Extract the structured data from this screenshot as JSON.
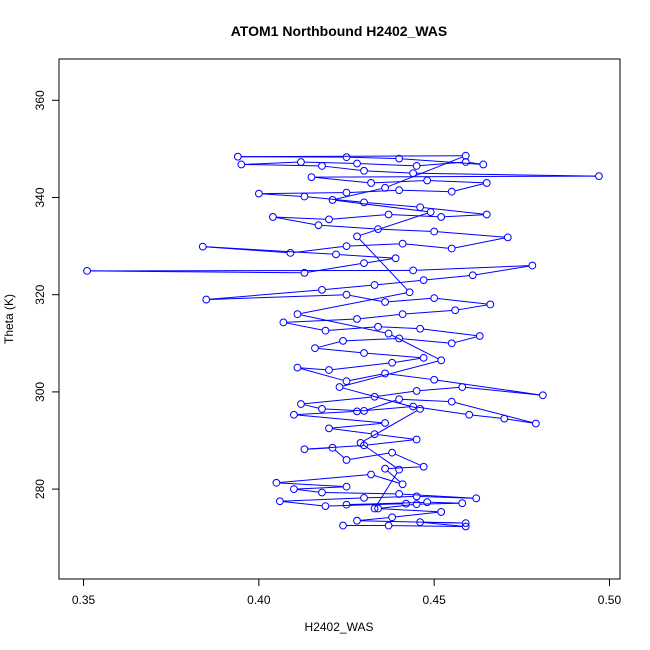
{
  "chart_data": {
    "type": "line",
    "markers": true,
    "title": "ATOM1 Northbound H2402_WAS",
    "xlabel": "H2402_WAS",
    "ylabel": "Theta (K)",
    "xlim": [
      0.343,
      0.503
    ],
    "ylim": [
      261.5,
      368.5
    ],
    "x_ticks": [
      0.35,
      0.4,
      0.45,
      0.5
    ],
    "x_tick_labels": [
      "0.35",
      "0.40",
      "0.45",
      "0.50"
    ],
    "y_ticks": [
      280,
      300,
      320,
      340,
      360
    ],
    "y_tick_labels": [
      "280",
      "300",
      "320",
      "340",
      "360"
    ],
    "grid": false,
    "series": [
      {
        "color": "#0000ff",
        "marker": "open-circle",
        "points": [
          [
            0.424,
            272.5
          ],
          [
            0.437,
            272.5
          ],
          [
            0.459,
            272.3
          ],
          [
            0.446,
            273.2
          ],
          [
            0.459,
            273.0
          ],
          [
            0.428,
            273.5
          ],
          [
            0.438,
            274.2
          ],
          [
            0.452,
            275.3
          ],
          [
            0.434,
            276.0
          ],
          [
            0.445,
            276.9
          ],
          [
            0.458,
            277.1
          ],
          [
            0.448,
            277.3
          ],
          [
            0.425,
            276.8
          ],
          [
            0.442,
            277.0
          ],
          [
            0.419,
            276.5
          ],
          [
            0.406,
            277.5
          ],
          [
            0.43,
            278.2
          ],
          [
            0.445,
            278.5
          ],
          [
            0.462,
            278.1
          ],
          [
            0.44,
            279.0
          ],
          [
            0.418,
            279.3
          ],
          [
            0.41,
            280.0
          ],
          [
            0.425,
            280.5
          ],
          [
            0.405,
            281.3
          ],
          [
            0.432,
            283.0
          ],
          [
            0.441,
            281.0
          ],
          [
            0.436,
            284.2
          ],
          [
            0.447,
            284.6
          ],
          [
            0.438,
            287.5
          ],
          [
            0.425,
            286.0
          ],
          [
            0.421,
            288.5
          ],
          [
            0.413,
            288.2
          ],
          [
            0.43,
            289.0
          ],
          [
            0.445,
            290.2
          ],
          [
            0.433,
            291.3
          ],
          [
            0.42,
            292.5
          ],
          [
            0.436,
            293.6
          ],
          [
            0.41,
            295.3
          ],
          [
            0.428,
            296.0
          ],
          [
            0.444,
            297.0
          ],
          [
            0.46,
            295.3
          ],
          [
            0.47,
            294.5
          ],
          [
            0.479,
            293.5
          ],
          [
            0.455,
            298.0
          ],
          [
            0.44,
            298.5
          ],
          [
            0.43,
            296.1
          ],
          [
            0.418,
            296.5
          ],
          [
            0.412,
            297.5
          ],
          [
            0.433,
            299.0
          ],
          [
            0.445,
            300.2
          ],
          [
            0.458,
            301.0
          ],
          [
            0.481,
            299.3
          ],
          [
            0.45,
            302.5
          ],
          [
            0.436,
            303.8
          ],
          [
            0.425,
            302.2
          ],
          [
            0.411,
            305.0
          ],
          [
            0.42,
            304.5
          ],
          [
            0.438,
            306.0
          ],
          [
            0.447,
            307.0
          ],
          [
            0.43,
            308.0
          ],
          [
            0.416,
            309.0
          ],
          [
            0.424,
            310.5
          ],
          [
            0.44,
            311.0
          ],
          [
            0.455,
            310.0
          ],
          [
            0.463,
            311.5
          ],
          [
            0.446,
            313.0
          ],
          [
            0.434,
            313.4
          ],
          [
            0.419,
            312.6
          ],
          [
            0.407,
            314.3
          ],
          [
            0.428,
            315.0
          ],
          [
            0.441,
            316.0
          ],
          [
            0.456,
            316.8
          ],
          [
            0.466,
            318.0
          ],
          [
            0.45,
            319.3
          ],
          [
            0.436,
            318.5
          ],
          [
            0.425,
            320.0
          ],
          [
            0.385,
            319.0
          ],
          [
            0.418,
            321.0
          ],
          [
            0.433,
            322.0
          ],
          [
            0.447,
            323.0
          ],
          [
            0.461,
            324.0
          ],
          [
            0.478,
            326.0
          ],
          [
            0.444,
            325.0
          ],
          [
            0.351,
            324.9
          ],
          [
            0.413,
            324.5
          ],
          [
            0.43,
            326.5
          ],
          [
            0.439,
            327.5
          ],
          [
            0.422,
            328.3
          ],
          [
            0.384,
            329.9
          ],
          [
            0.409,
            328.6
          ],
          [
            0.425,
            330.0
          ],
          [
            0.441,
            330.5
          ],
          [
            0.455,
            329.5
          ],
          [
            0.471,
            331.8
          ],
          [
            0.45,
            333.0
          ],
          [
            0.434,
            333.5
          ],
          [
            0.417,
            334.3
          ],
          [
            0.404,
            336.0
          ],
          [
            0.42,
            335.5
          ],
          [
            0.437,
            336.5
          ],
          [
            0.452,
            336.0
          ],
          [
            0.465,
            336.5
          ],
          [
            0.446,
            338.0
          ],
          [
            0.43,
            339.0
          ],
          [
            0.413,
            340.2
          ],
          [
            0.4,
            340.8
          ],
          [
            0.425,
            341.0
          ],
          [
            0.44,
            341.5
          ],
          [
            0.455,
            341.2
          ],
          [
            0.465,
            343.0
          ],
          [
            0.448,
            343.5
          ],
          [
            0.432,
            343.0
          ],
          [
            0.415,
            344.2
          ],
          [
            0.497,
            344.4
          ],
          [
            0.444,
            345.0
          ],
          [
            0.43,
            345.5
          ],
          [
            0.418,
            346.5
          ],
          [
            0.395,
            346.8
          ],
          [
            0.412,
            347.3
          ],
          [
            0.428,
            347.0
          ],
          [
            0.445,
            346.5
          ],
          [
            0.459,
            347.3
          ],
          [
            0.464,
            346.8
          ],
          [
            0.44,
            348.0
          ],
          [
            0.425,
            348.3
          ],
          [
            0.394,
            348.4
          ],
          [
            0.459,
            348.6
          ],
          [
            0.436,
            342.0
          ],
          [
            0.421,
            339.5
          ],
          [
            0.449,
            337.0
          ],
          [
            0.428,
            332.0
          ],
          [
            0.443,
            320.5
          ],
          [
            0.411,
            316.0
          ],
          [
            0.437,
            312.0
          ],
          [
            0.452,
            306.5
          ],
          [
            0.423,
            301.0
          ],
          [
            0.446,
            296.5
          ],
          [
            0.429,
            289.5
          ],
          [
            0.44,
            284.0
          ],
          [
            0.433,
            276.0
          ]
        ]
      }
    ]
  }
}
